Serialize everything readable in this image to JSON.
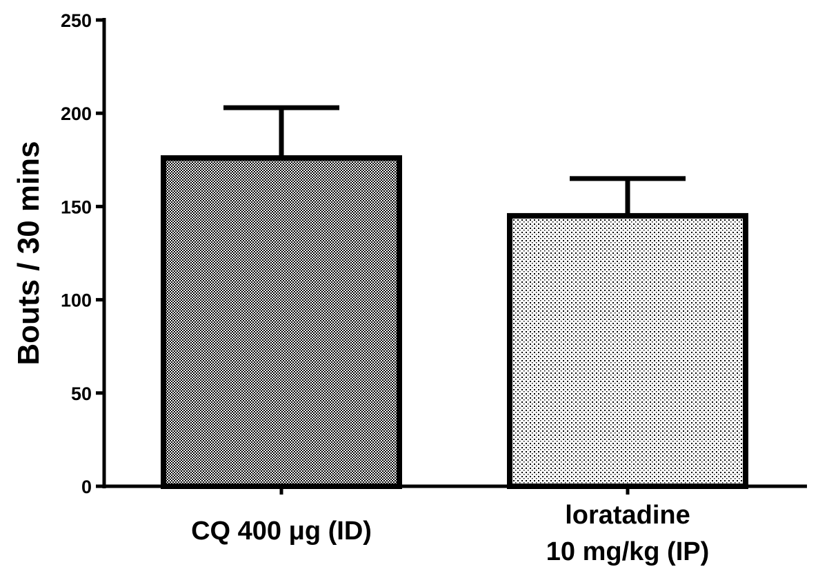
{
  "chart_data": {
    "type": "bar",
    "title": "",
    "xlabel": "",
    "ylabel": "Bouts / 30 mins",
    "ylim": [
      0,
      250
    ],
    "yticks": [
      0,
      50,
      100,
      150,
      200,
      250
    ],
    "ytick_labels": [
      "0",
      "50",
      "100",
      "150",
      "200",
      "250"
    ],
    "grid": false,
    "legend": "none",
    "categories": [
      {
        "lines": [
          "CQ 400 μg (ID)"
        ]
      },
      {
        "lines": [
          "loratadine",
          "10 mg/kg (IP)"
        ]
      }
    ],
    "values": [
      176,
      145
    ],
    "errors": [
      27,
      20
    ],
    "patterns": [
      "dense-checker",
      "sparse-dots"
    ]
  },
  "colors": {
    "ink": "#000000",
    "background": "#ffffff",
    "bar1_fill": "#8a8a8a",
    "bar2_fill": "#d9d9d9"
  }
}
